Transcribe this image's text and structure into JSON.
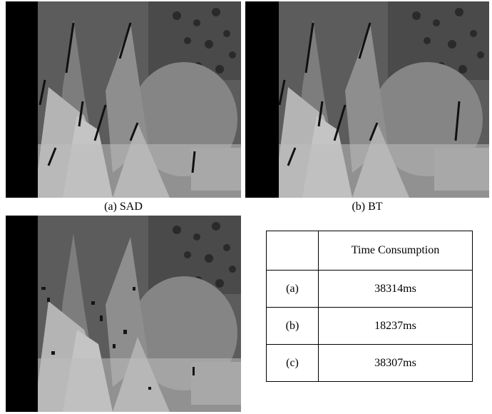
{
  "panels": [
    {
      "id": "a",
      "caption": "(a) SAD"
    },
    {
      "id": "b",
      "caption": "(b) BT"
    },
    {
      "id": "c",
      "caption": ""
    }
  ],
  "table": {
    "header": [
      "",
      "Time Consumption"
    ],
    "rows": [
      {
        "label": "(a)",
        "value": "38314ms"
      },
      {
        "label": "(b)",
        "value": "18237ms"
      },
      {
        "label": "(c)",
        "value": "38307ms"
      }
    ]
  }
}
